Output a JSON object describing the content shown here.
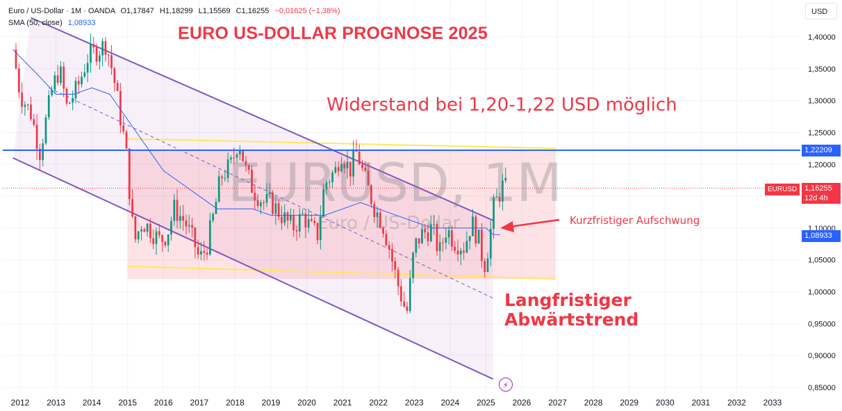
{
  "legend": {
    "symbol": "Euro / US-Dollar · 1M · OANDA",
    "open": "O1,17847",
    "high": "H1,18299",
    "low": "L1,15569",
    "close": "C1,16255",
    "change": "−0,01625 (−1,38%)",
    "sma_label": "SMA (50, close)",
    "sma_value": "1,08933"
  },
  "annotations": {
    "title": "EURO US-DOLLAR PROGNOSE 2025",
    "resistance": "Widerstand bei 1,20-1,22 USD möglich",
    "short_term": "Kurzfristiger Aufschwung",
    "long_term_line1": "Langfristiger",
    "long_term_line2": "Abwärtstrend"
  },
  "watermark": {
    "main": "EURUSD, 1M",
    "sub": "Euro / US-Dollar"
  },
  "axis": {
    "currency": "USD"
  },
  "price_tags": {
    "resistance": "1,22209",
    "price": "1,16255",
    "countdown": "12d 4h",
    "symbol": "EURUSD",
    "sma": "1,08933"
  },
  "colors": {
    "up": "#089981",
    "down": "#f23645",
    "channel": "#7e57c2",
    "range_band": "#ffe75e",
    "resistance_line": "#2962ff",
    "sma": "#2962ff"
  },
  "icons": {
    "bolt": "lightning-icon"
  },
  "chart_data": {
    "type": "candlestick",
    "ylim": [
      0.83,
      1.43
    ],
    "xlim": [
      2011.8,
      2033.6
    ],
    "y_ticks": [
      0.85,
      0.9,
      0.95,
      1.0,
      1.05,
      1.1,
      1.15,
      1.2,
      1.25,
      1.3,
      1.35,
      1.4
    ],
    "y_tick_labels": [
      "0,85000",
      "0,90000",
      "0,95000",
      "1,00000",
      "1,05000",
      "1,10000",
      "1,15000",
      "1,20000",
      "1,25000",
      "1,30000",
      "1,35000",
      "1,40000"
    ],
    "x_ticks": [
      2012,
      2013,
      2014,
      2015,
      2016,
      2017,
      2018,
      2019,
      2020,
      2021,
      2022,
      2023,
      2024,
      2025,
      2026,
      2027,
      2028,
      2029,
      2030,
      2031,
      2032,
      2033
    ],
    "x_tick_labels": [
      "2012",
      "2013",
      "2014",
      "2015",
      "2016",
      "2017",
      "2018",
      "2019",
      "2020",
      "2021",
      "2022",
      "2023",
      "2024",
      "2025",
      "2026",
      "2027",
      "2028",
      "2029",
      "2030",
      "2031",
      "2032",
      "2033"
    ],
    "close_path": [
      [
        2011.8,
        1.38
      ],
      [
        2012.0,
        1.31
      ],
      [
        2012.3,
        1.28
      ],
      [
        2012.55,
        1.22
      ],
      [
        2012.9,
        1.32
      ],
      [
        2013.1,
        1.35
      ],
      [
        2013.3,
        1.29
      ],
      [
        2013.6,
        1.32
      ],
      [
        2013.9,
        1.37
      ],
      [
        2014.2,
        1.38
      ],
      [
        2014.4,
        1.39
      ],
      [
        2014.6,
        1.34
      ],
      [
        2014.9,
        1.24
      ],
      [
        2015.0,
        1.2
      ],
      [
        2015.1,
        1.12
      ],
      [
        2015.2,
        1.08
      ],
      [
        2015.4,
        1.11
      ],
      [
        2015.6,
        1.1
      ],
      [
        2015.9,
        1.08
      ],
      [
        2016.1,
        1.09
      ],
      [
        2016.3,
        1.13
      ],
      [
        2016.6,
        1.11
      ],
      [
        2016.9,
        1.07
      ],
      [
        2017.0,
        1.05
      ],
      [
        2017.2,
        1.07
      ],
      [
        2017.4,
        1.12
      ],
      [
        2017.6,
        1.18
      ],
      [
        2017.9,
        1.2
      ],
      [
        2018.1,
        1.24
      ],
      [
        2018.3,
        1.19
      ],
      [
        2018.5,
        1.16
      ],
      [
        2018.8,
        1.14
      ],
      [
        2019.0,
        1.14
      ],
      [
        2019.3,
        1.12
      ],
      [
        2019.6,
        1.1
      ],
      [
        2019.9,
        1.12
      ],
      [
        2020.1,
        1.1
      ],
      [
        2020.3,
        1.09
      ],
      [
        2020.5,
        1.17
      ],
      [
        2020.8,
        1.19
      ],
      [
        2020.95,
        1.22
      ],
      [
        2021.2,
        1.19
      ],
      [
        2021.4,
        1.22
      ],
      [
        2021.6,
        1.18
      ],
      [
        2021.9,
        1.13
      ],
      [
        2022.1,
        1.11
      ],
      [
        2022.3,
        1.07
      ],
      [
        2022.5,
        1.02
      ],
      [
        2022.7,
        0.98
      ],
      [
        2022.8,
        0.97
      ],
      [
        2023.0,
        1.07
      ],
      [
        2023.2,
        1.09
      ],
      [
        2023.5,
        1.1
      ],
      [
        2023.7,
        1.06
      ],
      [
        2023.9,
        1.1
      ],
      [
        2024.1,
        1.08
      ],
      [
        2024.4,
        1.07
      ],
      [
        2024.6,
        1.11
      ],
      [
        2024.8,
        1.08
      ],
      [
        2024.95,
        1.04
      ],
      [
        2025.1,
        1.08
      ],
      [
        2025.2,
        1.13
      ],
      [
        2025.35,
        1.15
      ],
      [
        2025.5,
        1.17
      ],
      [
        2025.55,
        1.16255
      ]
    ],
    "sma": {
      "name": "SMA (50, close)",
      "points": [
        [
          2011.8,
          1.38
        ],
        [
          2012.5,
          1.34
        ],
        [
          2013.0,
          1.31
        ],
        [
          2013.5,
          1.31
        ],
        [
          2014.0,
          1.32
        ],
        [
          2014.5,
          1.31
        ],
        [
          2015.0,
          1.27
        ],
        [
          2015.5,
          1.23
        ],
        [
          2016.0,
          1.19
        ],
        [
          2016.5,
          1.17
        ],
        [
          2017.0,
          1.15
        ],
        [
          2017.5,
          1.13
        ],
        [
          2018.0,
          1.13
        ],
        [
          2018.5,
          1.13
        ],
        [
          2019.0,
          1.12
        ],
        [
          2019.5,
          1.12
        ],
        [
          2020.0,
          1.12
        ],
        [
          2020.5,
          1.12
        ],
        [
          2021.0,
          1.13
        ],
        [
          2021.5,
          1.14
        ],
        [
          2022.0,
          1.13
        ],
        [
          2022.5,
          1.12
        ],
        [
          2023.0,
          1.11
        ],
        [
          2023.5,
          1.1
        ],
        [
          2024.0,
          1.1
        ],
        [
          2024.5,
          1.1
        ],
        [
          2025.0,
          1.1
        ],
        [
          2025.2,
          1.09
        ],
        [
          2025.4,
          1.08933
        ]
      ]
    },
    "resistance_level": 1.22209,
    "current_price": 1.16255,
    "channel_upper": [
      [
        2012.3,
        1.43
      ],
      [
        2025.2,
        1.112
      ]
    ],
    "channel_lower": [
      [
        2011.8,
        1.21
      ],
      [
        2025.2,
        0.863
      ]
    ],
    "channel_mid": [
      [
        2012.8,
        1.32
      ],
      [
        2025.2,
        0.99
      ]
    ],
    "range_box": {
      "x": [
        2015.0,
        2026.95
      ],
      "top": [
        1.24,
        1.225
      ],
      "bottom": [
        1.04,
        1.02
      ]
    }
  }
}
